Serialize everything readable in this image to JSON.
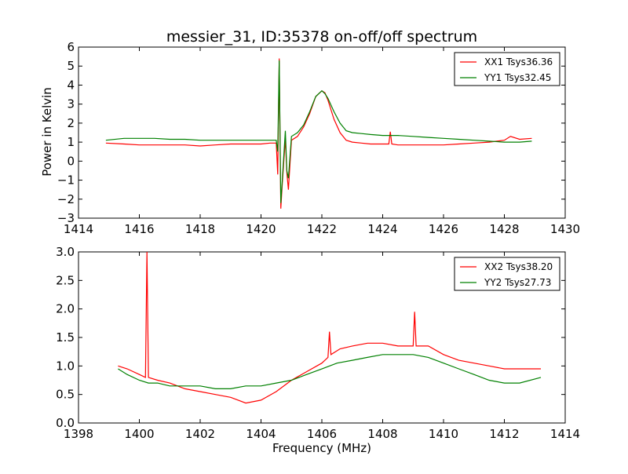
{
  "title": "messier_31, ID:35378 on-off/off spectrum",
  "chart_data": [
    {
      "type": "line",
      "title": "messier_31, ID:35378 on-off/off spectrum",
      "xlabel": "",
      "ylabel": "Power in Kelvin",
      "xlim": [
        1414,
        1430
      ],
      "ylim": [
        -3,
        6
      ],
      "xticks": [
        1414,
        1416,
        1418,
        1420,
        1422,
        1424,
        1426,
        1428,
        1430
      ],
      "yticks": [
        -3,
        -2,
        -1,
        0,
        1,
        2,
        3,
        4,
        5,
        6
      ],
      "grid": false,
      "legend_position": "top-right",
      "series": [
        {
          "name": "XX1 Tsys36.36",
          "color": "#ff0000",
          "x": [
            1414.9,
            1415.5,
            1416.0,
            1416.5,
            1417.0,
            1417.5,
            1418.0,
            1418.5,
            1419.0,
            1419.5,
            1420.0,
            1420.3,
            1420.5,
            1420.55,
            1420.6,
            1420.65,
            1420.7,
            1420.8,
            1420.85,
            1420.9,
            1421.0,
            1421.2,
            1421.4,
            1421.6,
            1421.8,
            1422.0,
            1422.1,
            1422.2,
            1422.4,
            1422.6,
            1422.8,
            1423.0,
            1423.3,
            1423.6,
            1424.0,
            1424.2,
            1424.25,
            1424.3,
            1424.5,
            1425.0,
            1425.5,
            1426.0,
            1426.5,
            1427.0,
            1427.5,
            1428.0,
            1428.2,
            1428.5,
            1428.9
          ],
          "y": [
            0.95,
            0.9,
            0.85,
            0.85,
            0.85,
            0.85,
            0.8,
            0.85,
            0.9,
            0.9,
            0.9,
            0.95,
            0.95,
            -0.7,
            5.4,
            -2.5,
            -1.2,
            1.2,
            -0.6,
            -1.5,
            1.1,
            1.3,
            1.8,
            2.5,
            3.4,
            3.7,
            3.6,
            3.2,
            2.2,
            1.5,
            1.1,
            1.0,
            0.95,
            0.9,
            0.9,
            0.9,
            1.55,
            0.9,
            0.85,
            0.85,
            0.85,
            0.85,
            0.9,
            0.95,
            1.0,
            1.1,
            1.3,
            1.15,
            1.2
          ]
        },
        {
          "name": "YY1 Tsys32.45",
          "color": "#008000",
          "x": [
            1414.9,
            1415.5,
            1416.0,
            1416.5,
            1417.0,
            1417.5,
            1418.0,
            1418.5,
            1419.0,
            1419.5,
            1420.0,
            1420.3,
            1420.5,
            1420.55,
            1420.6,
            1420.65,
            1420.7,
            1420.8,
            1420.85,
            1420.9,
            1421.0,
            1421.2,
            1421.4,
            1421.6,
            1421.8,
            1422.0,
            1422.1,
            1422.2,
            1422.4,
            1422.6,
            1422.8,
            1423.0,
            1423.3,
            1423.6,
            1424.0,
            1424.5,
            1425.0,
            1425.5,
            1426.0,
            1426.5,
            1427.0,
            1427.5,
            1428.0,
            1428.5,
            1428.9
          ],
          "y": [
            1.1,
            1.2,
            1.2,
            1.2,
            1.15,
            1.15,
            1.1,
            1.1,
            1.1,
            1.1,
            1.1,
            1.1,
            1.1,
            0.5,
            5.3,
            -2.2,
            -1.0,
            1.6,
            -0.5,
            -0.9,
            1.3,
            1.5,
            1.9,
            2.6,
            3.4,
            3.7,
            3.55,
            3.3,
            2.6,
            2.0,
            1.6,
            1.5,
            1.45,
            1.4,
            1.35,
            1.35,
            1.3,
            1.25,
            1.2,
            1.15,
            1.1,
            1.05,
            1.0,
            1.0,
            1.05
          ]
        }
      ]
    },
    {
      "type": "line",
      "title": "",
      "xlabel": "Frequency (MHz)",
      "ylabel": "",
      "xlim": [
        1398,
        1414
      ],
      "ylim": [
        0.0,
        3.0
      ],
      "xticks": [
        1398,
        1400,
        1402,
        1404,
        1406,
        1408,
        1410,
        1412,
        1414
      ],
      "yticks": [
        0.0,
        0.5,
        1.0,
        1.5,
        2.0,
        2.5,
        3.0
      ],
      "grid": false,
      "legend_position": "top-right",
      "series": [
        {
          "name": "XX2 Tsys38.20",
          "color": "#ff0000",
          "x": [
            1399.3,
            1399.6,
            1400.0,
            1400.2,
            1400.25,
            1400.3,
            1400.6,
            1401.0,
            1401.5,
            1402.0,
            1402.5,
            1403.0,
            1403.5,
            1404.0,
            1404.5,
            1405.0,
            1405.5,
            1406.0,
            1406.2,
            1406.25,
            1406.3,
            1406.6,
            1407.0,
            1407.5,
            1408.0,
            1408.5,
            1409.0,
            1409.05,
            1409.1,
            1409.5,
            1410.0,
            1410.5,
            1411.0,
            1411.5,
            1412.0,
            1412.5,
            1413.2
          ],
          "y": [
            1.0,
            0.95,
            0.85,
            0.8,
            3.0,
            0.8,
            0.75,
            0.7,
            0.6,
            0.55,
            0.5,
            0.45,
            0.35,
            0.4,
            0.55,
            0.75,
            0.9,
            1.05,
            1.15,
            1.6,
            1.2,
            1.3,
            1.35,
            1.4,
            1.4,
            1.35,
            1.35,
            1.95,
            1.35,
            1.35,
            1.2,
            1.1,
            1.05,
            1.0,
            0.95,
            0.95,
            0.95
          ]
        },
        {
          "name": "YY2 Tsys27.73",
          "color": "#008000",
          "x": [
            1399.3,
            1399.6,
            1400.0,
            1400.3,
            1400.6,
            1401.0,
            1401.5,
            1402.0,
            1402.5,
            1403.0,
            1403.5,
            1404.0,
            1404.5,
            1405.0,
            1405.5,
            1406.0,
            1406.5,
            1407.0,
            1407.5,
            1408.0,
            1408.5,
            1409.0,
            1409.5,
            1410.0,
            1410.5,
            1411.0,
            1411.5,
            1412.0,
            1412.5,
            1413.2
          ],
          "y": [
            0.95,
            0.85,
            0.75,
            0.7,
            0.7,
            0.65,
            0.65,
            0.65,
            0.6,
            0.6,
            0.65,
            0.65,
            0.7,
            0.75,
            0.85,
            0.95,
            1.05,
            1.1,
            1.15,
            1.2,
            1.2,
            1.2,
            1.15,
            1.05,
            0.95,
            0.85,
            0.75,
            0.7,
            0.7,
            0.8
          ]
        }
      ]
    }
  ]
}
